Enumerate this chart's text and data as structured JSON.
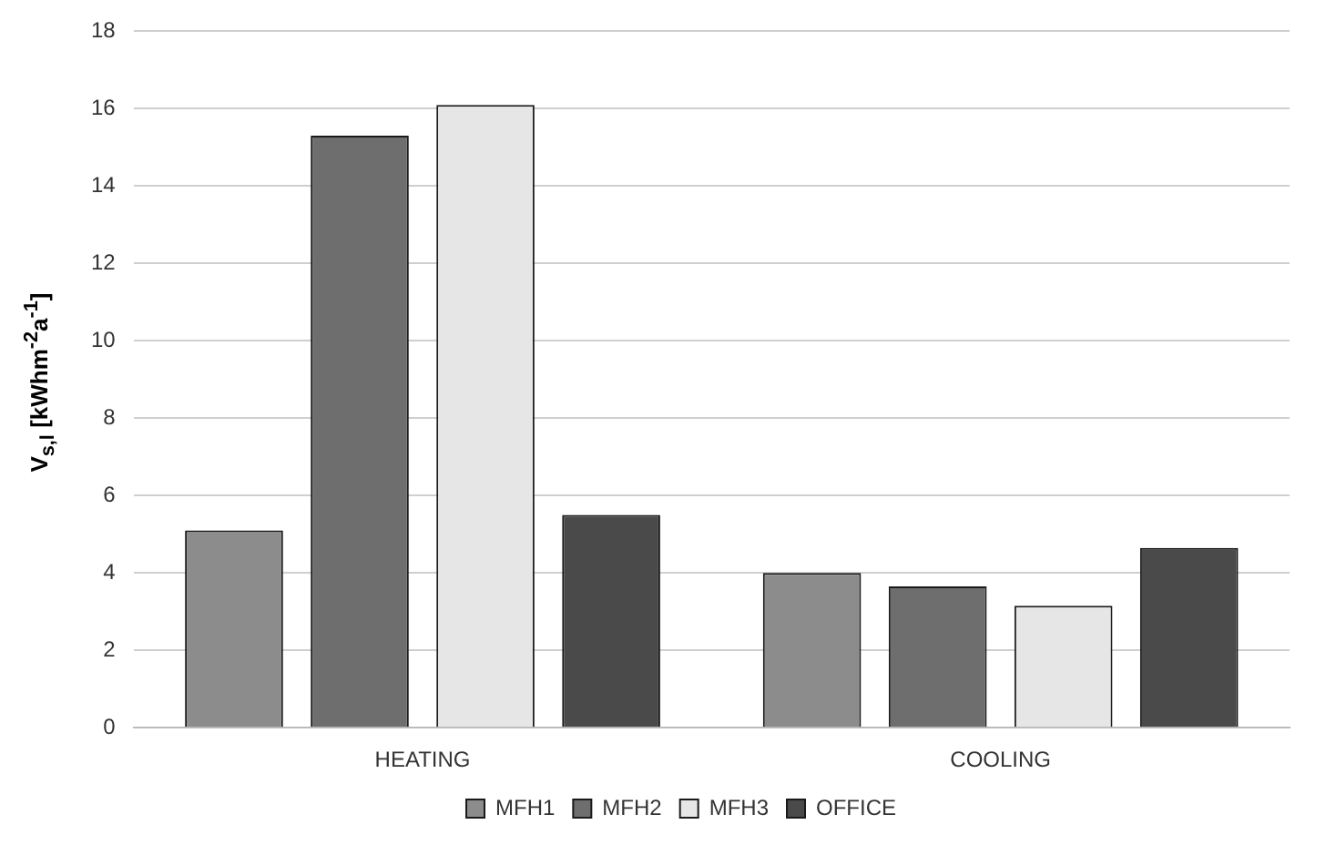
{
  "chart_data": {
    "type": "bar",
    "categories": [
      "HEATING",
      "COOLING"
    ],
    "series": [
      {
        "name": "MFH1",
        "color": "#8c8c8c",
        "values": [
          5.1,
          4.0
        ]
      },
      {
        "name": "MFH2",
        "color": "#6e6e6e",
        "values": [
          15.3,
          3.65
        ]
      },
      {
        "name": "MFH3",
        "color": "#e6e6e6",
        "values": [
          16.1,
          3.15
        ]
      },
      {
        "name": "OFFICE",
        "color": "#4a4a4a",
        "values": [
          5.5,
          4.65
        ]
      }
    ],
    "ylabel": "V$_{s,l}$  [kWhm$^{-2}$a$^{-1}$]",
    "ylim": [
      0,
      18
    ],
    "yticks": [
      0,
      2,
      4,
      6,
      8,
      10,
      12,
      14,
      16,
      18
    ],
    "grid": "y",
    "legend": "bottom"
  }
}
